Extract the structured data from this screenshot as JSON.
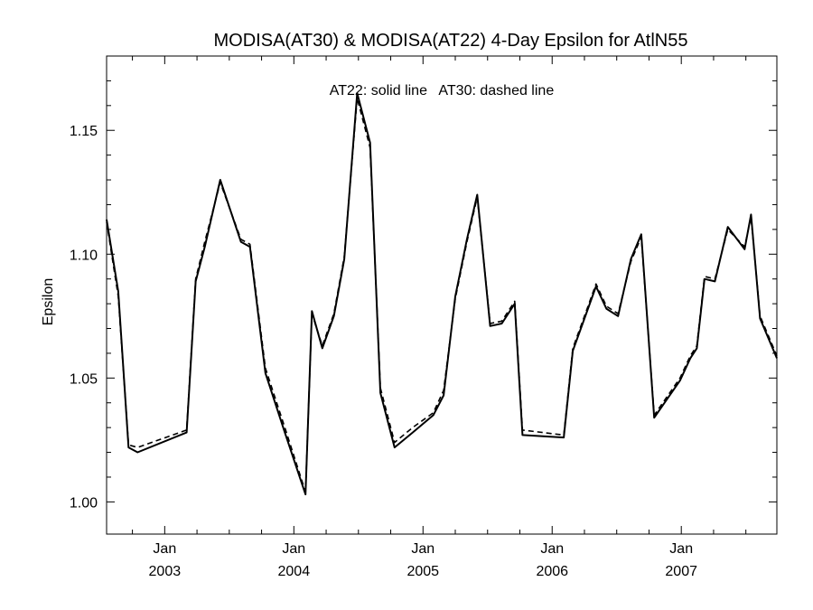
{
  "chart_data": {
    "type": "line",
    "title": "MODISA(AT30) & MODISA(AT22) 4-Day Epsilon for AtlN55",
    "annotation": "AT22: solid line   AT30: dashed line",
    "xlabel": "",
    "ylabel": "Epsilon",
    "xlim": [
      2002.55,
      2007.74
    ],
    "ylim": [
      0.987,
      1.18
    ],
    "grid": false,
    "y_ticks": [
      {
        "value": 1.0,
        "label": "1.00"
      },
      {
        "value": 1.05,
        "label": "1.05"
      },
      {
        "value": 1.1,
        "label": "1.10"
      },
      {
        "value": 1.15,
        "label": "1.15"
      }
    ],
    "y_minor_ticks": [
      1.01,
      1.02,
      1.03,
      1.04,
      1.06,
      1.07,
      1.08,
      1.09,
      1.11,
      1.12,
      1.13,
      1.14,
      1.16,
      1.17
    ],
    "x_ticks": [
      {
        "value": 2003.0,
        "month": "Jan",
        "year": "2003"
      },
      {
        "value": 2004.0,
        "month": "Jan",
        "year": "2004"
      },
      {
        "value": 2005.0,
        "month": "Jan",
        "year": "2005"
      },
      {
        "value": 2006.0,
        "month": "Jan",
        "year": "2006"
      },
      {
        "value": 2007.0,
        "month": "Jan",
        "year": "2007"
      }
    ],
    "x_minor_ticks": [
      2002.75,
      2003.25,
      2003.5,
      2003.75,
      2004.25,
      2004.5,
      2004.75,
      2005.25,
      2005.5,
      2005.75,
      2006.25,
      2006.5,
      2006.75,
      2007.25,
      2007.5
    ],
    "series": [
      {
        "name": "AT22",
        "style": "solid",
        "x": [
          2002.55,
          2002.64,
          2002.72,
          2002.79,
          2003.17,
          2003.24,
          2003.31,
          2003.43,
          2003.59,
          2003.66,
          2003.78,
          2003.93,
          2004.09,
          2004.14,
          2004.22,
          2004.31,
          2004.39,
          2004.49,
          2004.59,
          2004.67,
          2004.78,
          2004.92,
          2005.08,
          2005.16,
          2005.25,
          2005.34,
          2005.42,
          2005.52,
          2005.61,
          2005.71,
          2005.77,
          2006.09,
          2006.16,
          2006.25,
          2006.34,
          2006.42,
          2006.51,
          2006.61,
          2006.69,
          2006.79,
          2006.99,
          2007.07,
          2007.12,
          2007.18,
          2007.26,
          2007.36,
          2007.49,
          2007.54,
          2007.61,
          2007.74
        ],
        "values": [
          1.114,
          1.085,
          1.022,
          1.02,
          1.028,
          1.089,
          1.103,
          1.13,
          1.105,
          1.103,
          1.052,
          1.028,
          1.003,
          1.077,
          1.062,
          1.075,
          1.098,
          1.165,
          1.145,
          1.044,
          1.022,
          1.028,
          1.035,
          1.043,
          1.083,
          1.106,
          1.124,
          1.071,
          1.072,
          1.08,
          1.027,
          1.026,
          1.061,
          1.074,
          1.087,
          1.078,
          1.075,
          1.098,
          1.108,
          1.034,
          1.049,
          1.058,
          1.062,
          1.09,
          1.089,
          1.111,
          1.102,
          1.116,
          1.074,
          1.058
        ]
      },
      {
        "name": "AT30",
        "style": "dashed",
        "x": [
          2002.55,
          2002.64,
          2002.72,
          2002.79,
          2003.17,
          2003.24,
          2003.31,
          2003.43,
          2003.59,
          2003.66,
          2003.78,
          2003.93,
          2004.09,
          2004.14,
          2004.22,
          2004.31,
          2004.39,
          2004.49,
          2004.59,
          2004.67,
          2004.78,
          2004.92,
          2005.08,
          2005.16,
          2005.25,
          2005.34,
          2005.42,
          2005.52,
          2005.61,
          2005.71,
          2005.77,
          2006.09,
          2006.16,
          2006.25,
          2006.34,
          2006.42,
          2006.51,
          2006.61,
          2006.69,
          2006.79,
          2006.99,
          2007.07,
          2007.12,
          2007.18,
          2007.26,
          2007.36,
          2007.49,
          2007.54,
          2007.61,
          2007.74
        ],
        "values": [
          1.113,
          1.083,
          1.023,
          1.022,
          1.029,
          1.09,
          1.105,
          1.129,
          1.106,
          1.104,
          1.054,
          1.03,
          1.004,
          1.076,
          1.063,
          1.076,
          1.099,
          1.163,
          1.143,
          1.046,
          1.024,
          1.03,
          1.036,
          1.045,
          1.082,
          1.105,
          1.123,
          1.072,
          1.073,
          1.081,
          1.029,
          1.027,
          1.062,
          1.075,
          1.088,
          1.079,
          1.076,
          1.097,
          1.107,
          1.035,
          1.05,
          1.059,
          1.063,
          1.091,
          1.09,
          1.11,
          1.103,
          1.115,
          1.075,
          1.059
        ]
      }
    ]
  }
}
